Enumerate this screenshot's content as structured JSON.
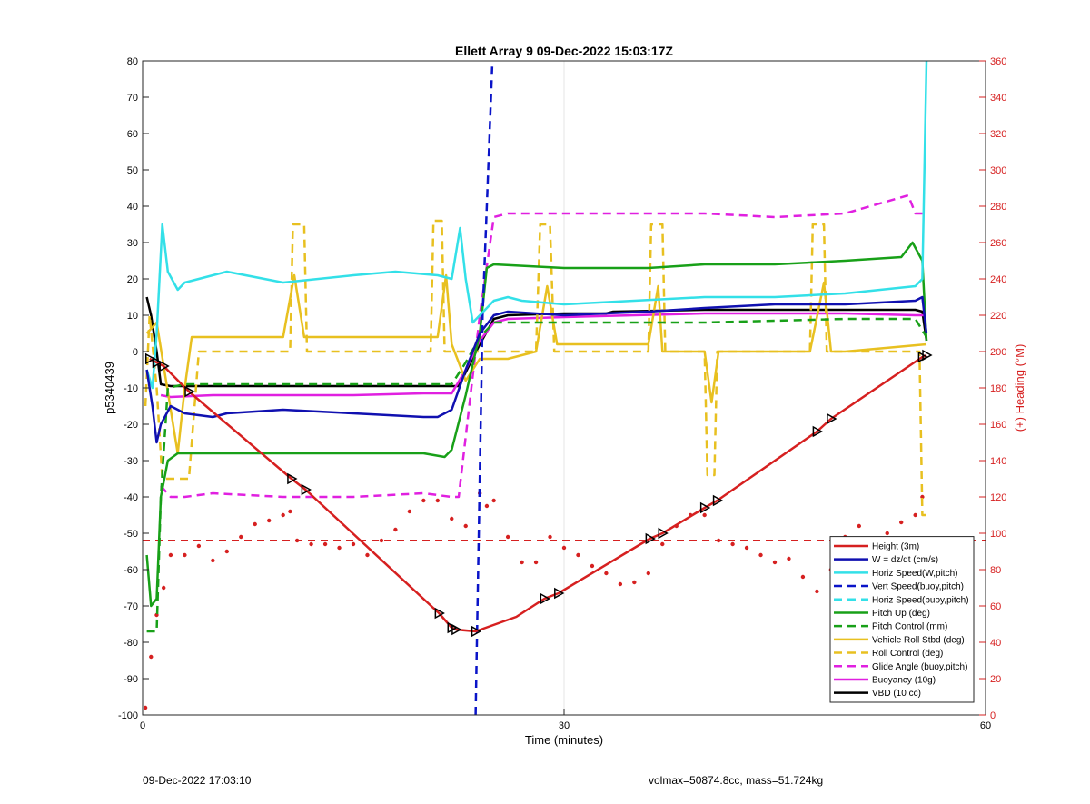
{
  "footer": {
    "left": "09-Dec-2022 17:03:10",
    "right": "volmax=50874.8cc, mass=51.724kg"
  },
  "chart_data": {
    "type": "line",
    "title": "Ellett Array 9 09-Dec-2022 15:03:17Z",
    "xlabel": "Time (minutes)",
    "ylabel": "p5340439",
    "y2label": "(+) Heading (°M)",
    "xlim": [
      0,
      60
    ],
    "ylim": [
      -100,
      80
    ],
    "y2lim": [
      0,
      360
    ],
    "xticks": [
      0,
      30,
      60
    ],
    "yticks": [
      -100,
      -90,
      -80,
      -70,
      -60,
      -50,
      -40,
      -30,
      -20,
      -10,
      0,
      10,
      20,
      30,
      40,
      50,
      60,
      70,
      80
    ],
    "y2ticks": [
      0,
      20,
      40,
      60,
      80,
      100,
      120,
      140,
      160,
      180,
      200,
      220,
      240,
      260,
      280,
      300,
      320,
      340,
      360
    ],
    "grid": true,
    "legend_position": "bottom-right",
    "series": [
      {
        "name": "Height (3m)",
        "color": "#d62020",
        "style": "solid",
        "axis": "left",
        "x": [
          0.5,
          1.0,
          1.5,
          3.3,
          10.6,
          11.6,
          21.1,
          22.0,
          22.3,
          23.7,
          26.6,
          28.6,
          29.6,
          36.1,
          37.0,
          40.0,
          40.9,
          48.0,
          49.0,
          55.5,
          55.8
        ],
        "y": [
          -2,
          -3,
          -4,
          -11,
          -35,
          -38,
          -72,
          -76,
          -76.5,
          -77,
          -73,
          -68,
          -66.5,
          -51.5,
          -50,
          -43,
          -41,
          -22,
          -18.5,
          -1.5,
          -1
        ]
      },
      {
        "name": "W = dz/dt (cm/s)",
        "color": "#1010b0",
        "style": "solid",
        "axis": "left",
        "x": [
          0.3,
          0.7,
          1.0,
          1.3,
          2.0,
          3.0,
          5.0,
          6.0,
          10.0,
          15.0,
          20.0,
          21.0,
          22.0,
          23.0,
          24.0,
          25.0,
          26.0,
          30.0,
          36.0,
          40.0,
          45.0,
          50.0,
          55.0,
          55.5,
          55.8
        ],
        "y": [
          -5,
          -15,
          -25,
          -20,
          -15,
          -17,
          -18,
          -17,
          -16,
          -17,
          -18,
          -18,
          -16,
          -5,
          5,
          10,
          11,
          10,
          11,
          12,
          13,
          13,
          14,
          15,
          5
        ]
      },
      {
        "name": "Horiz Speed(W,pitch)",
        "color": "#33e0e8",
        "style": "solid",
        "axis": "left",
        "x": [
          0.3,
          0.7,
          1.0,
          1.4,
          1.8,
          2.5,
          3.0,
          4.0,
          6.0,
          10.0,
          15.0,
          18.0,
          21.0,
          22.0,
          22.6,
          23.0,
          23.5,
          25.0,
          26.0,
          27.0,
          30.0,
          35.0,
          40.0,
          45.0,
          50.0,
          55.0,
          55.5,
          55.8
        ],
        "y": [
          -5,
          -10,
          5,
          35,
          22,
          17,
          19,
          20,
          22,
          19,
          21,
          22,
          21,
          20,
          34,
          20,
          8,
          14,
          15,
          14,
          13,
          14,
          15,
          15,
          16,
          18,
          20,
          80
        ]
      },
      {
        "name": "Vert Speed(buoy,pitch)",
        "color": "#0a14c8",
        "style": "dashed",
        "axis": "left",
        "x": [
          23.7,
          24.2,
          24.9
        ],
        "y": [
          -100,
          10,
          80
        ]
      },
      {
        "name": "Horiz Speed(buoy,pitch)",
        "color": "#33e0e8",
        "style": "dashed",
        "axis": "left",
        "x": [],
        "y": []
      },
      {
        "name": "Pitch Up (deg)",
        "color": "#18a018",
        "style": "solid",
        "axis": "left",
        "x": [
          0.3,
          0.6,
          1.0,
          1.3,
          1.8,
          2.5,
          3.5,
          6.0,
          10.0,
          15.0,
          20.0,
          21.5,
          22.0,
          23.0,
          24.0,
          24.5,
          25.0,
          30.0,
          36.0,
          40.0,
          45.0,
          50.0,
          54.0,
          54.8,
          55.5,
          55.8
        ],
        "y": [
          -56,
          -70,
          -68,
          -40,
          -30,
          -28,
          -28,
          -28,
          -28,
          -28,
          -28,
          -29,
          -27,
          -12,
          5,
          23,
          24,
          23,
          23,
          24,
          24,
          25,
          26,
          30,
          25,
          3
        ]
      },
      {
        "name": "Pitch Control (mm)",
        "color": "#18a018",
        "style": "dashed",
        "axis": "left",
        "x": [
          0.3,
          1.0,
          1.3,
          1.8,
          3.0,
          10.0,
          20.0,
          22.0,
          23.0,
          24.0,
          25.0,
          26.0,
          30.0,
          40.0,
          50.0,
          55.0,
          55.8
        ],
        "y": [
          -77,
          -77,
          -40,
          -10,
          -9,
          -9,
          -9,
          -9,
          -3,
          4,
          8,
          8,
          8,
          8,
          9,
          9,
          4
        ]
      },
      {
        "name": "Vehicle Roll Stbd (deg)",
        "color": "#e8c020",
        "style": "solid",
        "axis": "left",
        "x": [
          0.3,
          1.0,
          2.5,
          3.0,
          3.5,
          10.0,
          10.8,
          11.5,
          12.0,
          20.0,
          21.0,
          21.6,
          22.0,
          23.0,
          24.0,
          26.0,
          28.0,
          28.8,
          29.5,
          36.0,
          36.7,
          37.0,
          40.0,
          40.5,
          41.0,
          47.5,
          48.5,
          49.0,
          50.0,
          55.8
        ],
        "y": [
          5,
          8,
          -28,
          -10,
          4,
          4,
          21,
          4,
          4,
          4,
          4,
          21,
          2,
          -8,
          -2,
          -2,
          0,
          18,
          2,
          2,
          18,
          0,
          0,
          -14,
          0,
          0,
          19,
          0,
          0,
          2
        ]
      },
      {
        "name": "Roll Control (deg)",
        "color": "#e8c020",
        "style": "dashed",
        "axis": "left",
        "x": [
          0.2,
          0.5,
          1.0,
          1.4,
          2.2,
          3.0,
          3.3,
          4.0,
          10.5,
          10.7,
          11.5,
          11.7,
          20.5,
          20.7,
          21.3,
          21.5,
          22.0,
          26.0,
          28.0,
          28.3,
          29.0,
          29.3,
          36.0,
          36.2,
          37.0,
          37.2,
          40.0,
          40.2,
          40.7,
          40.9,
          47.5,
          47.7,
          48.5,
          48.7,
          55.3,
          55.5,
          55.8
        ],
        "y": [
          -15,
          10,
          -10,
          -35,
          -35,
          -35,
          -35,
          0,
          0,
          35,
          35,
          0,
          0,
          36,
          36,
          0,
          0,
          0,
          0,
          35,
          35,
          0,
          0,
          35,
          35,
          0,
          0,
          -34,
          -34,
          0,
          0,
          35,
          35,
          0,
          0,
          -45,
          -45
        ]
      },
      {
        "name": "Glide Angle (buoy,pitch)",
        "color": "#e020e0",
        "style": "dashed",
        "axis": "left",
        "x": [
          1.3,
          2.0,
          3.0,
          5.0,
          10.0,
          15.0,
          20.0,
          22.0,
          22.5,
          24.0,
          25.0,
          26.0,
          30.0,
          35.0,
          40.0,
          45.0,
          50.0,
          54.5,
          55.0,
          55.5
        ],
        "y": [
          -37,
          -40,
          -40,
          -39,
          -40,
          -40,
          -39,
          -40,
          -40,
          10,
          37,
          38,
          38,
          38,
          38,
          37,
          38,
          43,
          38,
          38
        ]
      },
      {
        "name": "Buoyancy (10g)",
        "color": "#e020e0",
        "style": "solid",
        "axis": "left",
        "x": [
          1.3,
          2.0,
          5.0,
          10.0,
          15.0,
          20.0,
          22.0,
          23.0,
          24.0,
          25.0,
          26.0,
          30.0,
          35.0,
          40.0,
          45.0,
          50.0,
          55.0,
          55.8
        ],
        "y": [
          -12,
          -12.5,
          -12,
          -12,
          -12,
          -11.5,
          -11.5,
          -5,
          3,
          8,
          9,
          9.5,
          10,
          10.5,
          10.5,
          10.5,
          10,
          10
        ]
      },
      {
        "name": "VBD (10 cc)",
        "color": "#000000",
        "style": "solid",
        "axis": "left",
        "x": [
          0.3,
          0.6,
          1.0,
          1.3,
          2.0,
          5.0,
          10.0,
          15.0,
          20.0,
          22.0,
          22.5,
          24.0,
          25.0,
          26.0,
          30.0,
          33.0,
          33.5,
          40.0,
          45.0,
          50.0,
          55.0,
          55.5,
          55.8
        ],
        "y": [
          15,
          10,
          0,
          -9,
          -9.5,
          -9.5,
          -9.5,
          -9.5,
          -9.5,
          -9.5,
          -9.5,
          2,
          9,
          10,
          10.5,
          10.5,
          11,
          11.5,
          11.5,
          11.5,
          11.5,
          11,
          3
        ]
      }
    ],
    "reference_line": {
      "color": "#d62020",
      "style": "dashed",
      "axis": "right",
      "y": 96
    },
    "heading_points": {
      "color": "#d62020",
      "axis": "right",
      "x": [
        0.2,
        0.6,
        1.0,
        1.5,
        2.0,
        3.0,
        4.0,
        5.0,
        6.0,
        7.0,
        8.0,
        9.0,
        10.0,
        10.5,
        11.0,
        12.0,
        13.0,
        14.0,
        15.0,
        16.0,
        17.0,
        18.0,
        19.0,
        20.0,
        21.0,
        22.0,
        23.0,
        24.0,
        24.5,
        25.0,
        26.0,
        27.0,
        28.0,
        29.0,
        30.0,
        31.0,
        32.0,
        33.0,
        34.0,
        35.0,
        36.0,
        37.0,
        38.0,
        39.0,
        40.0,
        41.0,
        42.0,
        43.0,
        44.0,
        45.0,
        46.0,
        47.0,
        48.0,
        49.0,
        50.0,
        51.0,
        52.0,
        53.0,
        54.0,
        55.0,
        55.5
      ],
      "y": [
        4,
        32,
        55,
        70,
        88,
        88,
        93,
        85,
        90,
        98,
        105,
        107,
        110,
        112,
        96,
        94,
        94,
        92,
        94,
        88,
        96,
        102,
        112,
        118,
        118,
        108,
        104,
        122,
        115,
        118,
        98,
        84,
        84,
        98,
        92,
        88,
        82,
        78,
        72,
        73,
        78,
        94,
        104,
        110,
        110,
        96,
        94,
        92,
        88,
        84,
        86,
        76,
        68,
        80,
        98,
        104,
        94,
        100,
        106,
        110,
        120
      ]
    },
    "markers": {
      "color": "#000000",
      "shape": "triangle-right",
      "x": [
        0.5,
        1.0,
        1.5,
        3.3,
        10.6,
        11.6,
        21.1,
        22.0,
        22.3,
        23.7,
        28.6,
        29.6,
        36.1,
        37.0,
        40.0,
        40.9,
        48.0,
        49.0,
        55.5,
        55.8
      ],
      "y": [
        -2,
        -3,
        -4,
        -11,
        -35,
        -38,
        -72,
        -76,
        -76.5,
        -77,
        -68,
        -66.5,
        -51.5,
        -50,
        -43,
        -41,
        -22,
        -18.5,
        -1.5,
        -1
      ]
    }
  }
}
